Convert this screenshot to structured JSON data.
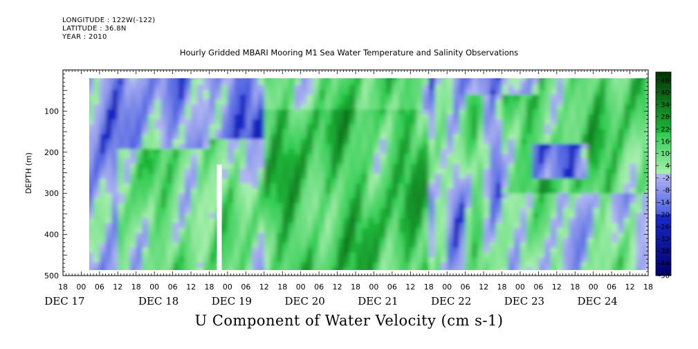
{
  "header": {
    "longitude": "LONGITUDE : 122W(-122)",
    "latitude": "LATITUDE : 36.8N",
    "year": "YEAR : 2010"
  },
  "chart_data": {
    "type": "heatmap",
    "title": "Hourly Gridded MBARI Mooring M1 Sea Water Temperature and Salinity Observations",
    "subtitle": "U Component of Water Velocity (cm s-1)",
    "ylabel": "DEPTH (m)",
    "xlabel": "",
    "ylim": [
      500,
      0
    ],
    "yticks": [
      "100",
      "200",
      "300",
      "400",
      "500"
    ],
    "yticks_values": [
      100,
      200,
      300,
      400,
      500
    ],
    "x_hour_labels": [
      "18",
      "00",
      "06",
      "12",
      "18",
      "00",
      "06",
      "12",
      "18",
      "00",
      "06",
      "12",
      "18",
      "00",
      "06",
      "12",
      "18",
      "00",
      "06",
      "12",
      "18",
      "00",
      "06",
      "12",
      "18",
      "00",
      "06",
      "12",
      "18",
      "00",
      "06",
      "12",
      "18"
    ],
    "x_day_labels": [
      "DEC 17",
      "DEC 18",
      "DEC 19",
      "DEC 20",
      "DEC 21",
      "DEC 22",
      "DEC 23",
      "DEC 24"
    ],
    "data_gap": {
      "hours_from_dec17_18": [
        50,
        51
      ],
      "depth_range_m": [
        230,
        500
      ]
    },
    "colorbar": {
      "ticks": [
        "46",
        "40",
        "34",
        "28",
        "22",
        "16",
        "10",
        "4",
        "-2",
        "-8",
        "-14",
        "-20",
        "-26",
        "-32",
        "-38",
        "-44",
        "-50"
      ],
      "range": [
        -50,
        50
      ],
      "low_color": "#000066",
      "mid_low_color": "#b3b8f2",
      "mid_high_color": "#aaf0b0",
      "high_color": "#003300"
    },
    "field_summary": [
      {
        "period": "DEC 17 18 - DEC 18 12",
        "surface_to_500m": "weak negative, -2 to -20"
      },
      {
        "period": "DEC 18 18 - DEC 19 18",
        "upper_100m": "negative",
        "below_200m": "positive, 4 to 16"
      },
      {
        "period": "DEC 19 18 - DEC 20 06",
        "upper_150m": "negative, to -26",
        "below": "positive"
      },
      {
        "period": "DEC 20 06 - DEC 22 12",
        "most_depths": "positive, 10 to 34"
      },
      {
        "period": "DEC 22 12 - DEC 23 06",
        "pattern": "alternating weak positive and negative"
      },
      {
        "period": "DEC 23 06 - DEC 24 18",
        "upper_300m": "positive, 10 to 28",
        "near_200m_late": "negative, to -20"
      }
    ]
  }
}
